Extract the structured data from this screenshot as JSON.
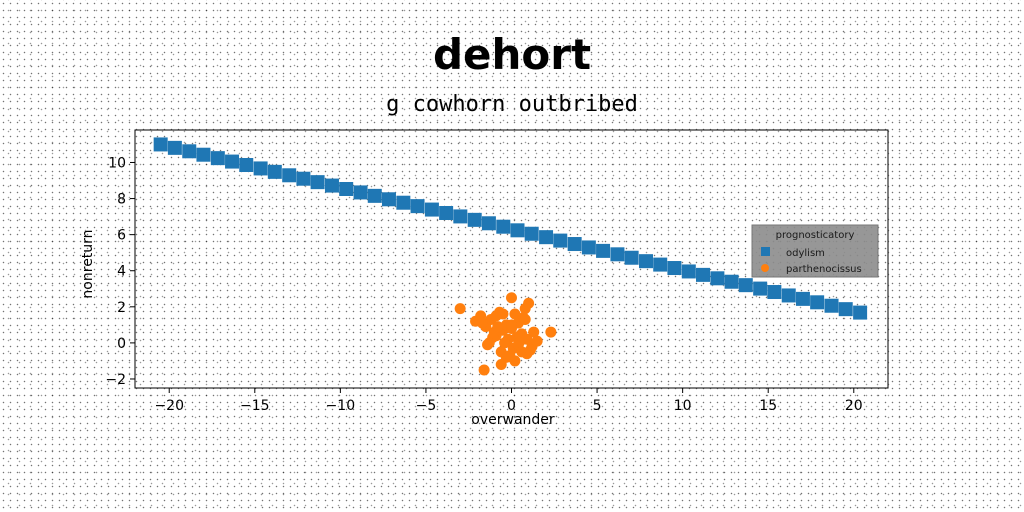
{
  "chart_data": {
    "type": "scatter",
    "title": "dehort",
    "subtitle": "g cowhorn outbribed",
    "xlabel": "overwander",
    "ylabel": "nonreturn",
    "xlim": [
      -22,
      22
    ],
    "ylim": [
      -2.5,
      11.8
    ],
    "xticks": [
      -20,
      -15,
      -10,
      -5,
      0,
      5,
      10,
      15,
      20
    ],
    "yticks": [
      -2,
      0,
      2,
      4,
      6,
      8,
      10
    ],
    "grid": false,
    "legend": {
      "title": "prognosticatory",
      "placement": "center-right"
    },
    "series": [
      {
        "name": "odylism",
        "color": "#1f77b4",
        "marker": "square",
        "x": [
          -20.5,
          -19.67,
          -18.83,
          -18.0,
          -17.16,
          -16.33,
          -15.5,
          -14.66,
          -13.83,
          -12.99,
          -12.16,
          -11.33,
          -10.49,
          -9.66,
          -8.82,
          -7.99,
          -7.16,
          -6.32,
          -5.49,
          -4.65,
          -3.82,
          -2.99,
          -2.15,
          -1.32,
          -0.48,
          0.35,
          1.18,
          2.02,
          2.85,
          3.69,
          4.52,
          5.35,
          6.19,
          7.02,
          7.86,
          8.69,
          9.52,
          10.36,
          11.19,
          12.03,
          12.86,
          13.69,
          14.53,
          15.36,
          16.2,
          17.03,
          17.86,
          18.7,
          19.53,
          20.37
        ],
        "y": [
          11.0,
          10.81,
          10.62,
          10.43,
          10.24,
          10.05,
          9.86,
          9.67,
          9.48,
          9.29,
          9.1,
          8.91,
          8.72,
          8.53,
          8.34,
          8.15,
          7.96,
          7.77,
          7.58,
          7.39,
          7.2,
          7.01,
          6.82,
          6.63,
          6.44,
          6.24,
          6.05,
          5.86,
          5.67,
          5.48,
          5.29,
          5.1,
          4.91,
          4.72,
          4.53,
          4.34,
          4.15,
          3.96,
          3.77,
          3.58,
          3.39,
          3.2,
          3.01,
          2.82,
          2.63,
          2.44,
          2.25,
          2.06,
          1.87,
          1.68
        ]
      },
      {
        "name": "parthenocissus",
        "color": "#ff7f0e",
        "marker": "circle",
        "x": [
          -3.0,
          -2.1,
          -1.8,
          -1.5,
          -1.2,
          -0.9,
          -0.7,
          -0.5,
          -0.3,
          0.0,
          0.2,
          0.4,
          0.6,
          0.8,
          1.0,
          1.3,
          -1.4,
          -1.0,
          -0.6,
          -0.2,
          0.1,
          0.5,
          0.9,
          1.2,
          2.3,
          -1.7,
          -0.8,
          0.3,
          0.7,
          -0.4,
          0.0,
          -1.1,
          0.4,
          1.5,
          -0.3,
          0.6,
          -0.9,
          0.2,
          1.1,
          -0.6,
          0.8,
          -1.6,
          -0.1,
          0.5,
          -1.3,
          -0.5,
          0.9,
          0.0
        ],
        "y": [
          1.9,
          1.2,
          1.5,
          0.9,
          1.3,
          0.4,
          1.7,
          0.7,
          1.0,
          2.5,
          1.6,
          1.1,
          0.5,
          1.9,
          2.2,
          0.6,
          -0.1,
          0.6,
          -0.5,
          0.2,
          -0.3,
          0.1,
          -0.6,
          -0.2,
          0.6,
          1.1,
          0.9,
          0.3,
          1.4,
          0.0,
          0.8,
          0.3,
          -0.1,
          0.1,
          -0.8,
          -0.5,
          1.5,
          -1.0,
          -0.4,
          -1.2,
          1.3,
          -1.5,
          -0.7,
          0.4,
          0.0,
          1.6,
          0.2,
          1.0
        ]
      }
    ]
  }
}
